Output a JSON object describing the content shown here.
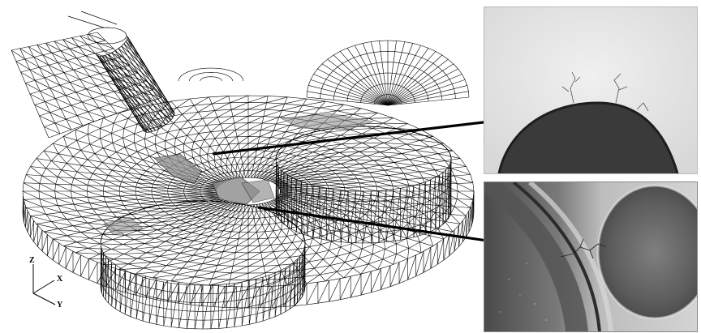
{
  "axes": {
    "z_label": "Z",
    "x_label": "X",
    "y_label": "Y"
  },
  "colors": {
    "mesh": "#000000",
    "shade": "#9a9a9a",
    "arrow": "#000000"
  }
}
